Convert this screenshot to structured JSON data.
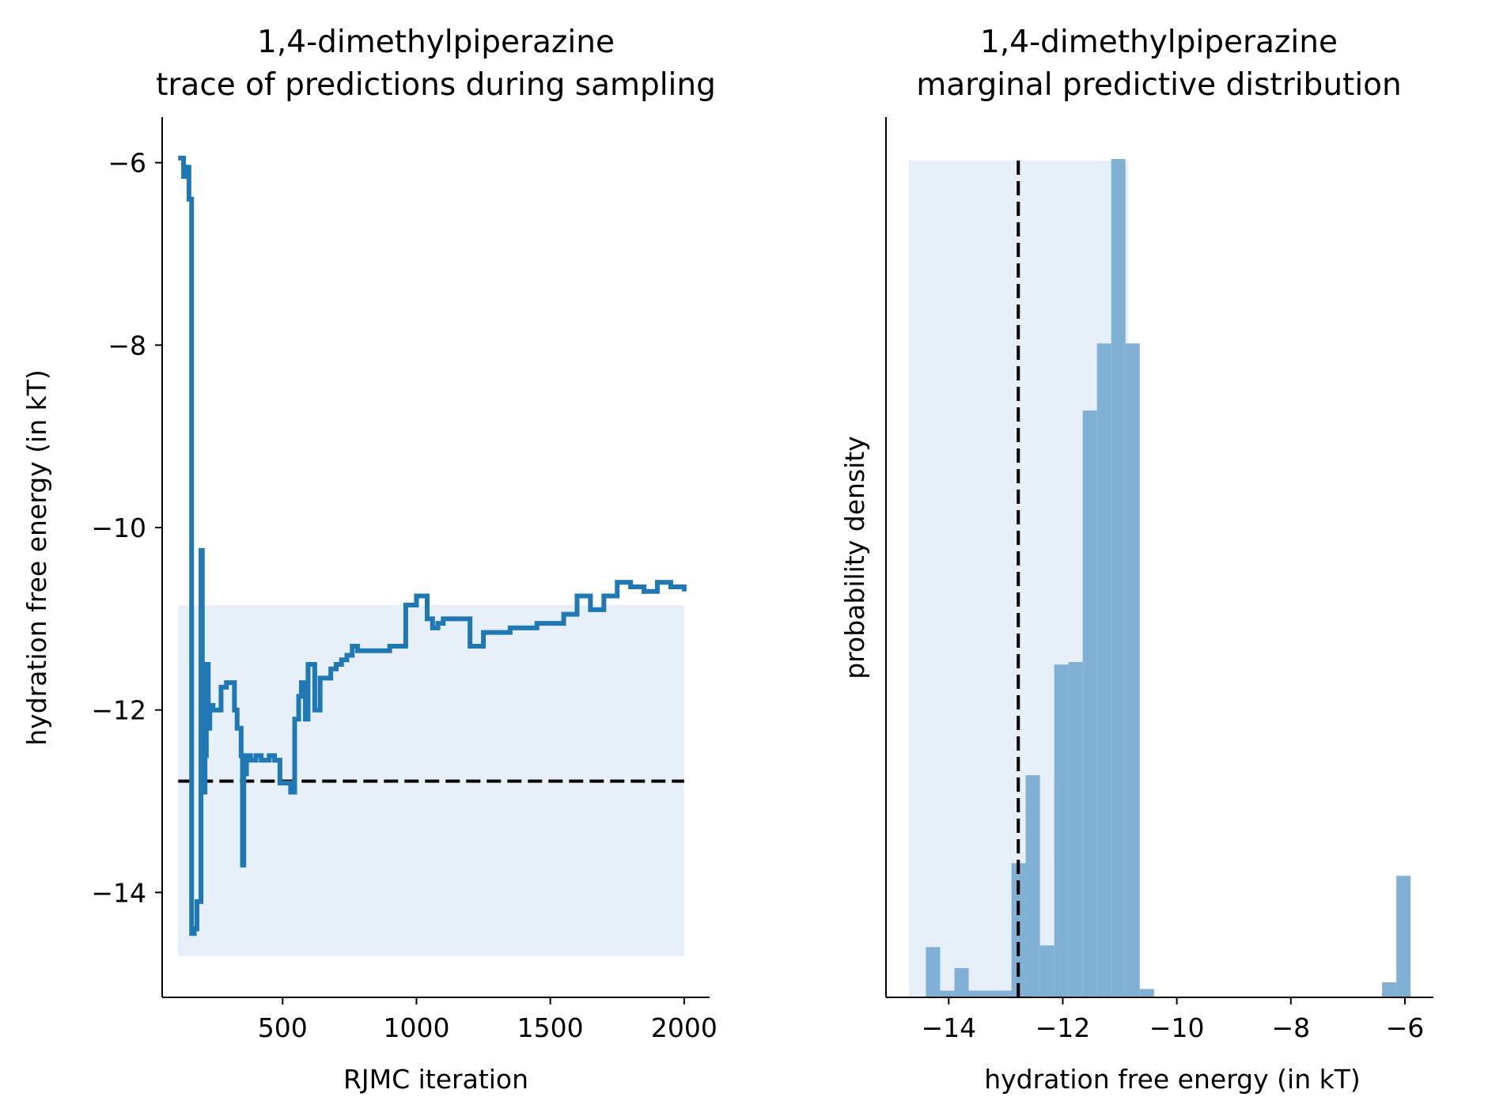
{
  "chart_data": [
    {
      "type": "line",
      "title": [
        "1,4-dimethylpiperazine",
        "trace of predictions during sampling"
      ],
      "xlabel": "RJMC iteration",
      "ylabel": "hydration free energy (in kT)",
      "xlim": [
        50,
        2095
      ],
      "ylim": [
        -15.15,
        -5.5
      ],
      "xticks": [
        500,
        1000,
        1500,
        2000
      ],
      "yticks": [
        -6,
        -8,
        -10,
        -12,
        -14
      ],
      "xtick_labels": [
        "500",
        "1000",
        "1500",
        "2000"
      ],
      "ytick_labels": [
        "−6",
        "−8",
        "−10",
        "−12",
        "−14"
      ],
      "band": {
        "x": [
          110,
          2000
        ],
        "y": [
          -14.7,
          -10.85
        ],
        "color": "#e7eff8"
      },
      "reference": {
        "y": -12.78,
        "x": [
          110,
          2000
        ],
        "style": "dashed",
        "color": "#000000"
      },
      "series": [
        {
          "color": "#1f77b4",
          "x": [
            110,
            130,
            140,
            150,
            160,
            170,
            180,
            195,
            200,
            210,
            215,
            222,
            228,
            232,
            240,
            250,
            270,
            290,
            320,
            330,
            345,
            350,
            355,
            365,
            380,
            400,
            420,
            450,
            470,
            490,
            530,
            545,
            560,
            570,
            585,
            595,
            620,
            640,
            660,
            680,
            700,
            720,
            740,
            760,
            780,
            820,
            860,
            900,
            960,
            1000,
            1040,
            1060,
            1080,
            1100,
            1150,
            1200,
            1250,
            1300,
            1350,
            1400,
            1450,
            1500,
            1550,
            1600,
            1650,
            1700,
            1750,
            1800,
            1850,
            1900,
            1950,
            2000
          ],
          "y": [
            -5.95,
            -6.15,
            -6.05,
            -6.4,
            -14.45,
            -14.4,
            -14.1,
            -10.25,
            -12.9,
            -12.5,
            -11.5,
            -12.2,
            -12.0,
            -11.95,
            -12.0,
            -12.0,
            -11.75,
            -11.7,
            -12.0,
            -12.2,
            -12.5,
            -13.7,
            -12.7,
            -12.5,
            -12.55,
            -12.5,
            -12.55,
            -12.5,
            -12.55,
            -12.8,
            -12.9,
            -12.1,
            -11.85,
            -11.7,
            -12.1,
            -11.5,
            -12.0,
            -11.65,
            -11.65,
            -11.55,
            -11.5,
            -11.45,
            -11.4,
            -11.3,
            -11.35,
            -11.35,
            -11.35,
            -11.3,
            -10.85,
            -10.75,
            -11.0,
            -11.1,
            -11.05,
            -11.0,
            -11.0,
            -11.3,
            -11.15,
            -11.15,
            -11.1,
            -11.1,
            -11.05,
            -11.05,
            -10.95,
            -10.75,
            -10.9,
            -10.75,
            -10.6,
            -10.65,
            -10.7,
            -10.6,
            -10.65,
            -10.7
          ]
        }
      ]
    },
    {
      "type": "bar",
      "title": [
        "1,4-dimethylpiperazine",
        "marginal predictive distribution"
      ],
      "xlabel": "hydration free energy (in kT)",
      "ylabel": "probability density",
      "xlim": [
        -15.1,
        -5.5
      ],
      "ylim": [
        0,
        1.05
      ],
      "xticks": [
        -14,
        -12,
        -10,
        -8,
        -6
      ],
      "xtick_labels": [
        "−14",
        "−12",
        "−10",
        "−8",
        "−6"
      ],
      "band": {
        "x": [
          -14.7,
          -10.85
        ],
        "color": "#e7eff8"
      },
      "reference": {
        "x": -12.78,
        "style": "dashed",
        "color": "#000000"
      },
      "bin_edges": [
        -14.4,
        -14.15,
        -13.9,
        -13.65,
        -13.4,
        -13.15,
        -12.9,
        -12.65,
        -12.4,
        -12.15,
        -11.9,
        -11.65,
        -11.4,
        -11.15,
        -10.9,
        -10.65,
        -10.4,
        -10.15,
        -9.9,
        -9.65,
        -9.4,
        -9.15,
        -8.9,
        -8.65,
        -8.4,
        -8.15,
        -7.9,
        -7.65,
        -7.4,
        -7.15,
        -6.9,
        -6.65,
        -6.4,
        -6.15,
        -5.9
      ],
      "values": [
        0.06,
        0.008,
        0.035,
        0.008,
        0.008,
        0.008,
        0.16,
        0.265,
        0.062,
        0.397,
        0.4,
        0.7,
        0.78,
        1.0,
        0.78,
        0.01,
        0,
        0,
        0,
        0,
        0,
        0,
        0,
        0,
        0,
        0,
        0,
        0,
        0,
        0,
        0,
        0,
        0.018,
        0.145
      ],
      "bar_color": "#80b1d5"
    }
  ]
}
